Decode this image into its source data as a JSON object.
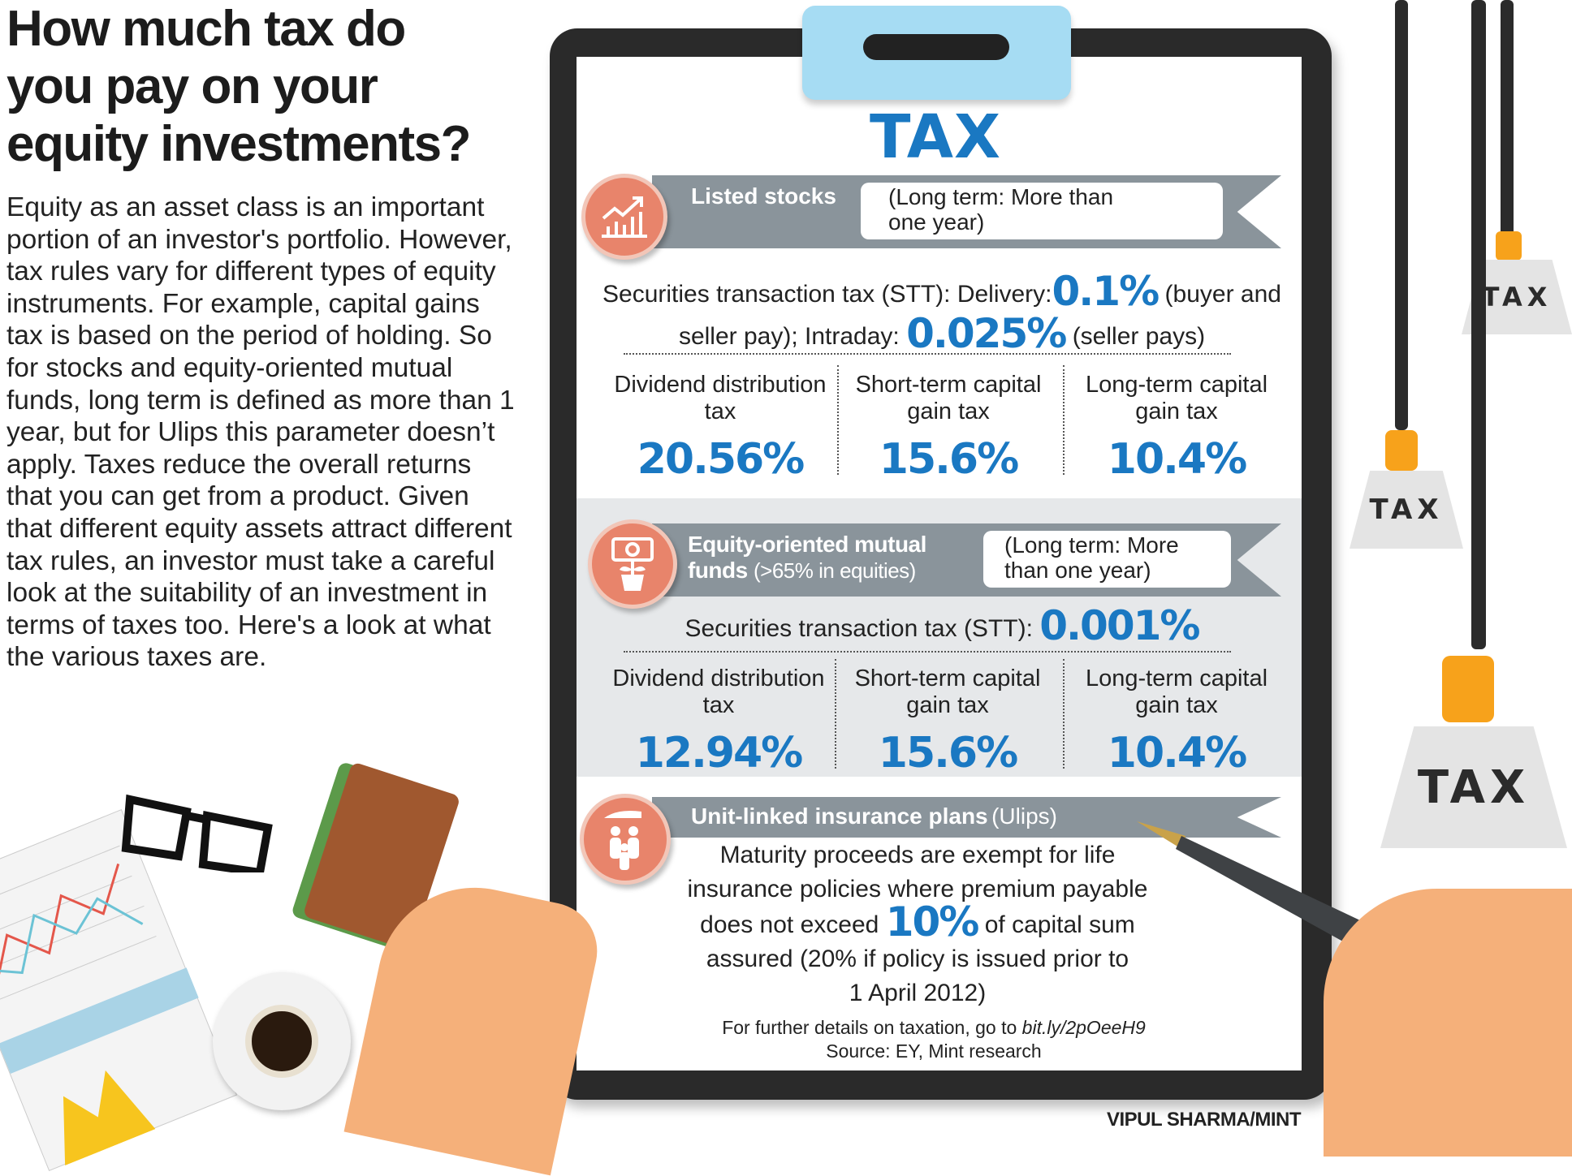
{
  "title": "How much tax do you pay on your equity investments?",
  "intro": "Equity as an asset class is an important portion of an investor's portfolio. However, tax rules vary for different types of equity instruments. For example, capital gains tax is based on the period of holding. So for stocks and equity-oriented mutual funds, long term is defined as more than 1 year, but for Ulips this parameter doesn’t apply. Taxes reduce the overall returns that you can get from a product. Given that different equity assets attract different tax rules, an investor must take a careful look at the suitability of an investment in terms of taxes too. Here's a look at what the various taxes are.",
  "clipboard_heading": "TAX",
  "colors": {
    "accent_blue": "#1a78c2",
    "banner_gray": "#8a949b",
    "icon_coral": "#e8846b",
    "clip_blue": "#a6dcf3",
    "board": "#2a2a2a"
  },
  "listed_stocks": {
    "icon": "rising-chart-icon",
    "title": "Listed stocks",
    "long_term_note": "(Long term: More than one year)",
    "stt_prefix": "Securities transaction tax (STT): Delivery:",
    "stt_delivery": "0.1%",
    "stt_delivery_note": "(buyer and",
    "stt_line2_prefix": "seller pay); Intraday:",
    "stt_intraday": "0.025%",
    "stt_intraday_note": "(seller pays)",
    "columns": [
      {
        "label": "Dividend distribution tax",
        "value": "20.56%"
      },
      {
        "label": "Short-term capital gain tax",
        "value": "15.6%"
      },
      {
        "label": "Long-term capital gain tax",
        "value": "10.4%"
      }
    ]
  },
  "mutual_funds": {
    "icon": "money-plant-icon",
    "title": "Equity-oriented mutual funds",
    "subtitle": "(>65% in equities)",
    "long_term_note": "(Long term: More than one year)",
    "stt_prefix": "Securities transaction tax (STT):",
    "stt_value": "0.001%",
    "columns": [
      {
        "label": "Dividend distribution tax",
        "value": "12.94%"
      },
      {
        "label": "Short-term capital gain tax",
        "value": "15.6%"
      },
      {
        "label": "Long-term capital gain tax",
        "value": "10.4%"
      }
    ]
  },
  "ulips": {
    "icon": "family-protection-icon",
    "title": "Unit-linked insurance plans",
    "subtitle": "(Ulips)",
    "line1": "Maturity proceeds are exempt for life",
    "line2": "insurance policies where premium payable",
    "line3_prefix": "does not exceed",
    "line3_value": "10%",
    "line3_suffix": "of capital sum",
    "line4": "assured (20% if policy is issued prior to",
    "line5": "1 April 2012)"
  },
  "footnote": {
    "prefix": "For further details on taxation, go to",
    "link": "bit.ly/2pOeeH9",
    "source": "Source: EY, Mint research"
  },
  "credit": "VIPUL SHARMA/MINT",
  "weights": [
    "TAX",
    "TAX",
    "TAX"
  ]
}
